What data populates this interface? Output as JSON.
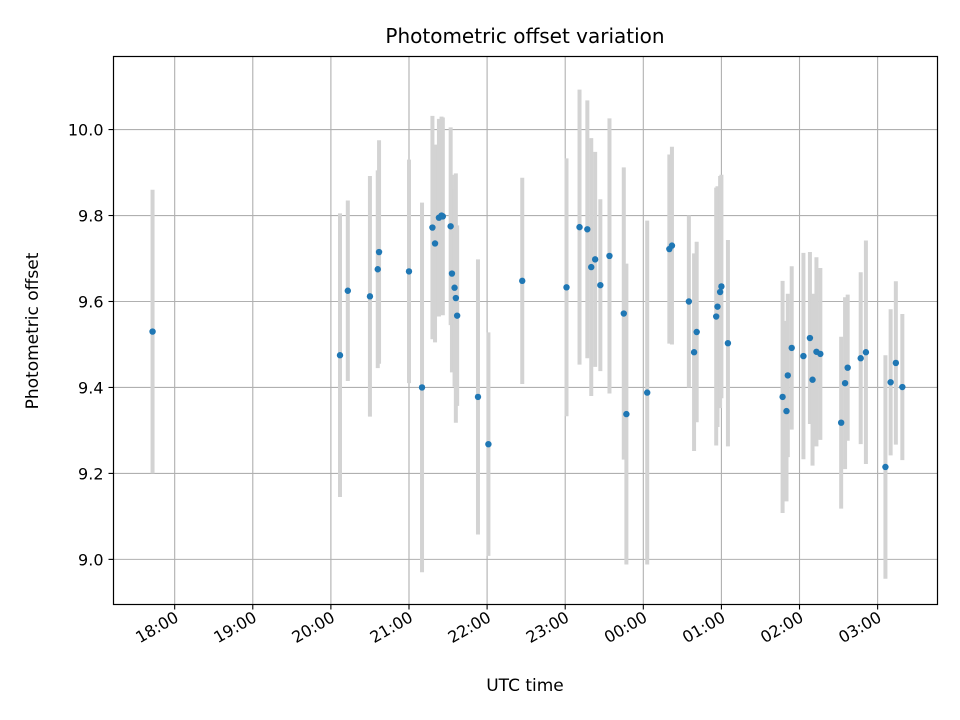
{
  "chart_data": {
    "type": "scatter",
    "title": "Photometric offset variation",
    "xlabel": "UTC time",
    "ylabel": "Photometric offset",
    "x_tick_labels": [
      "18:00",
      "19:00",
      "20:00",
      "21:00",
      "22:00",
      "23:00",
      "00:00",
      "01:00",
      "02:00",
      "03:00"
    ],
    "y_tick_labels": [
      "9.0",
      "9.2",
      "9.4",
      "9.6",
      "9.8",
      "10.0"
    ],
    "y_ticks": [
      9.0,
      9.2,
      9.4,
      9.6,
      9.8,
      10.0
    ],
    "xlim": [
      "17:13",
      "03:46"
    ],
    "ylim": [
      8.895,
      10.17
    ],
    "grid": true,
    "colors": {
      "marker": "#1f77b4",
      "errorbar": "#d3d3d3",
      "grid": "#b0b0b0"
    },
    "series": [
      {
        "x": [
          "17:43",
          "20:07",
          "20:13",
          "20:30",
          "20:36",
          "20:37",
          "21:00",
          "21:10",
          "21:18",
          "21:20",
          "21:23",
          "21:25",
          "21:26",
          "21:32",
          "21:33",
          "21:35",
          "21:36",
          "21:37",
          "21:53",
          "22:01",
          "22:27",
          "23:01",
          "23:11",
          "23:17",
          "23:20",
          "23:23",
          "23:27",
          "23:34",
          "23:45",
          "23:47",
          "00:03",
          "00:20",
          "00:22",
          "00:35",
          "00:39",
          "00:41",
          "00:56",
          "00:57",
          "00:59",
          "01:00",
          "01:05",
          "01:47",
          "01:50",
          "01:51",
          "01:54",
          "02:03",
          "02:08",
          "02:10",
          "02:13",
          "02:16",
          "02:32",
          "02:35",
          "02:37",
          "02:47",
          "02:51",
          "03:06",
          "03:10",
          "03:14",
          "03:19"
        ],
        "y": [
          9.53,
          9.475,
          9.625,
          9.612,
          9.675,
          9.715,
          9.67,
          9.4,
          9.772,
          9.735,
          9.795,
          9.8,
          9.798,
          9.775,
          9.665,
          9.632,
          9.608,
          9.567,
          9.378,
          9.268,
          9.648,
          9.633,
          9.773,
          9.768,
          9.68,
          9.698,
          9.638,
          9.706,
          9.572,
          9.338,
          9.388,
          9.722,
          9.73,
          9.6,
          9.482,
          9.529,
          9.565,
          9.588,
          9.622,
          9.635,
          9.503,
          9.378,
          9.345,
          9.428,
          9.492,
          9.473,
          9.515,
          9.418,
          9.483,
          9.478,
          9.318,
          9.41,
          9.446,
          9.468,
          9.482,
          9.215,
          9.412,
          9.457,
          9.401
        ],
        "yerr": [
          0.33,
          0.33,
          0.21,
          0.28,
          0.23,
          0.26,
          0.26,
          0.43,
          0.26,
          0.23,
          0.23,
          0.23,
          0.23,
          0.23,
          0.23,
          0.23,
          0.29,
          0.21,
          0.32,
          0.26,
          0.24,
          0.3,
          0.32,
          0.3,
          0.3,
          0.25,
          0.2,
          0.32,
          0.34,
          0.35,
          0.4,
          0.22,
          0.23,
          0.2,
          0.23,
          0.21,
          0.3,
          0.28,
          0.27,
          0.26,
          0.24,
          0.27,
          0.21,
          0.19,
          0.19,
          0.24,
          0.2,
          0.2,
          0.22,
          0.2,
          0.2,
          0.2,
          0.17,
          0.2,
          0.26,
          0.26,
          0.17,
          0.19,
          0.17
        ]
      }
    ]
  }
}
